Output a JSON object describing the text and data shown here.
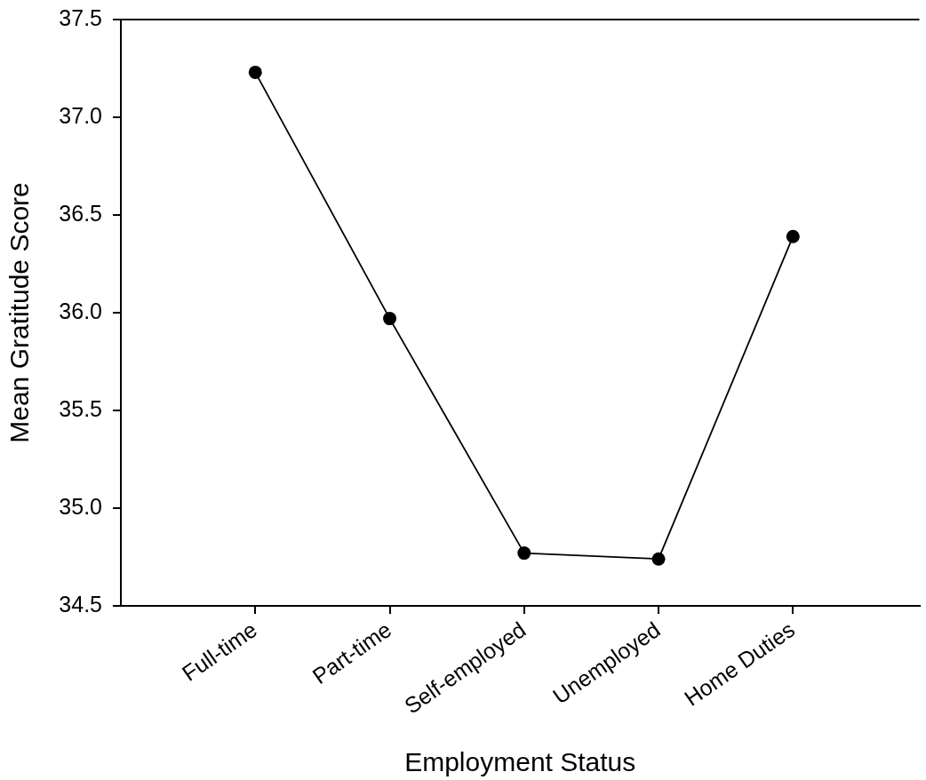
{
  "chart_data": {
    "type": "line",
    "xlabel": "Employment Status",
    "ylabel": "Mean Gratitude Score",
    "categories": [
      "Full-time",
      "Part-time",
      "Self-employed",
      "Unemployed",
      "Home Duties"
    ],
    "values": [
      37.23,
      35.97,
      34.77,
      34.74,
      36.39
    ],
    "color": "#000000",
    "ylim": [
      34.5,
      37.5
    ],
    "yticks": [
      34.5,
      {
        "value": 35,
        "label": "35.0"
      },
      35.5,
      {
        "value": 36,
        "label": "36.0"
      },
      36.5,
      {
        "value": 37,
        "label": "37.0"
      },
      37.5
    ],
    "marker": "circle",
    "line_style": "solid"
  }
}
